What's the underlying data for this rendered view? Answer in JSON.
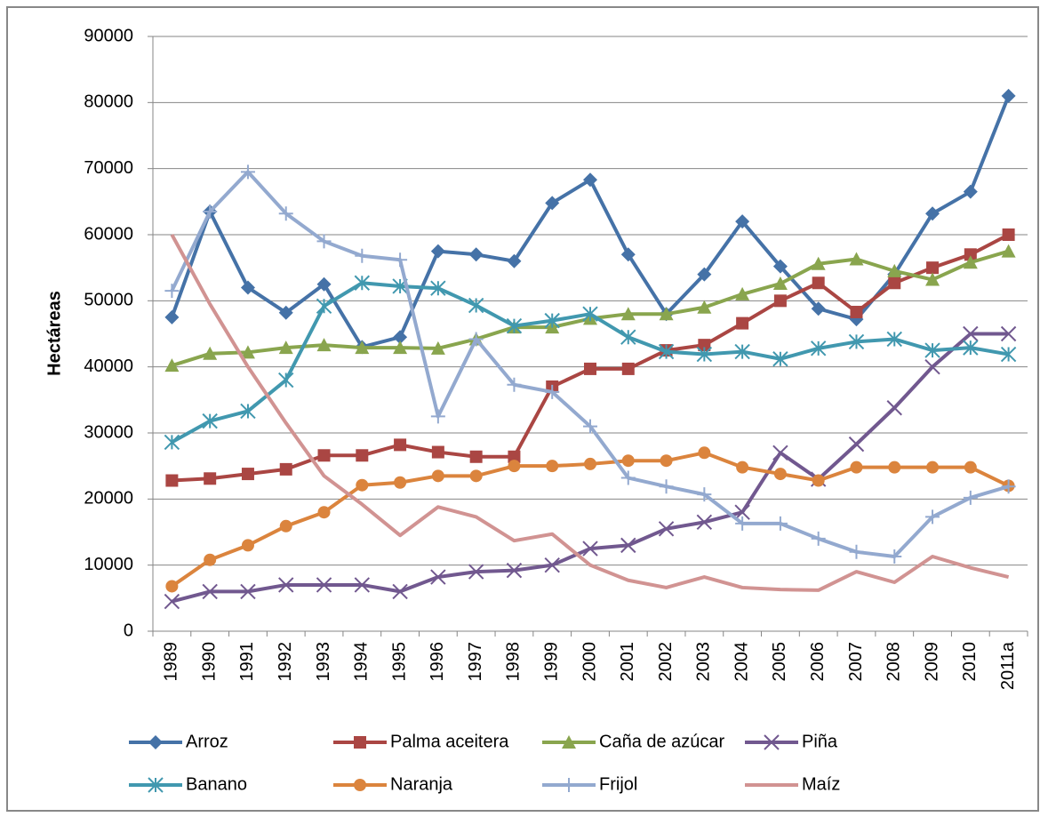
{
  "chart_data": {
    "type": "line",
    "y_label": "Hectáreas",
    "categories": [
      "1989",
      "1990",
      "1991",
      "1992",
      "1993",
      "1994",
      "1995",
      "1996",
      "1997",
      "1998",
      "1999",
      "2000",
      "2001",
      "2002",
      "2003",
      "2004",
      "2005",
      "2006",
      "2007",
      "2008",
      "2009",
      "2010",
      "2011a"
    ],
    "ylim": [
      0,
      90000
    ],
    "yticks": [
      0,
      10000,
      20000,
      30000,
      40000,
      50000,
      60000,
      70000,
      80000,
      90000
    ],
    "grid": true,
    "legend": "bottom",
    "series": [
      {
        "name": "Arroz",
        "color": "#4572a7",
        "marker": "diamond",
        "values": [
          47500,
          63500,
          52000,
          48200,
          52500,
          43000,
          44500,
          57500,
          57000,
          56000,
          64800,
          68300,
          57000,
          48000,
          54000,
          62000,
          55200,
          48800,
          47200,
          54000,
          63200,
          66500,
          81000
        ]
      },
      {
        "name": "Palma aceitera",
        "color": "#aa4643",
        "marker": "square",
        "values": [
          22800,
          23100,
          23800,
          24500,
          26600,
          26600,
          28200,
          27100,
          26400,
          26400,
          37000,
          39700,
          39700,
          42500,
          43300,
          46600,
          50000,
          52700,
          48300,
          52700,
          55000,
          57000,
          60000
        ]
      },
      {
        "name": "Caña de azúcar",
        "color": "#89a54e",
        "marker": "triangle",
        "values": [
          40200,
          42000,
          42200,
          42900,
          43300,
          42900,
          42900,
          42800,
          44200,
          46000,
          46000,
          47300,
          48000,
          48000,
          49000,
          51000,
          52600,
          55600,
          56300,
          54500,
          53200,
          55800,
          57500
        ]
      },
      {
        "name": "Piña",
        "color": "#71588f",
        "marker": "x",
        "values": [
          4500,
          6000,
          6000,
          7000,
          7000,
          7000,
          6000,
          8200,
          9000,
          9200,
          10000,
          12500,
          13000,
          15500,
          16500,
          18000,
          27000,
          23000,
          28300,
          33800,
          40000,
          45000,
          45000
        ]
      },
      {
        "name": "Banano",
        "color": "#4198af",
        "marker": "star",
        "values": [
          28600,
          31800,
          33300,
          38000,
          49200,
          52700,
          52200,
          51900,
          49300,
          46200,
          47000,
          48000,
          44500,
          42300,
          41900,
          42300,
          41200,
          42800,
          43800,
          44200,
          42500,
          42900,
          41900
        ]
      },
      {
        "name": "Naranja",
        "color": "#db843d",
        "marker": "circle",
        "values": [
          6800,
          10800,
          13000,
          15900,
          18000,
          22100,
          22500,
          23500,
          23500,
          25000,
          25000,
          25300,
          25800,
          25800,
          27000,
          24800,
          23800,
          22800,
          24800,
          24800,
          24800,
          24800,
          22000
        ]
      },
      {
        "name": "Frijol",
        "color": "#93a9cf",
        "marker": "plus",
        "values": [
          51500,
          63500,
          69500,
          63200,
          59000,
          56800,
          56200,
          32500,
          44200,
          37300,
          36200,
          31000,
          23200,
          21900,
          20700,
          16300,
          16300,
          14000,
          12000,
          11300,
          17300,
          20200,
          21900
        ]
      },
      {
        "name": "Maíz",
        "color": "#d19392",
        "marker": "none",
        "values": [
          60000,
          49500,
          40000,
          31500,
          23500,
          19200,
          14500,
          18800,
          17300,
          13700,
          14700,
          10000,
          7700,
          6600,
          8200,
          6600,
          6300,
          6200,
          9000,
          7400,
          11300,
          9600,
          8200
        ]
      }
    ]
  }
}
